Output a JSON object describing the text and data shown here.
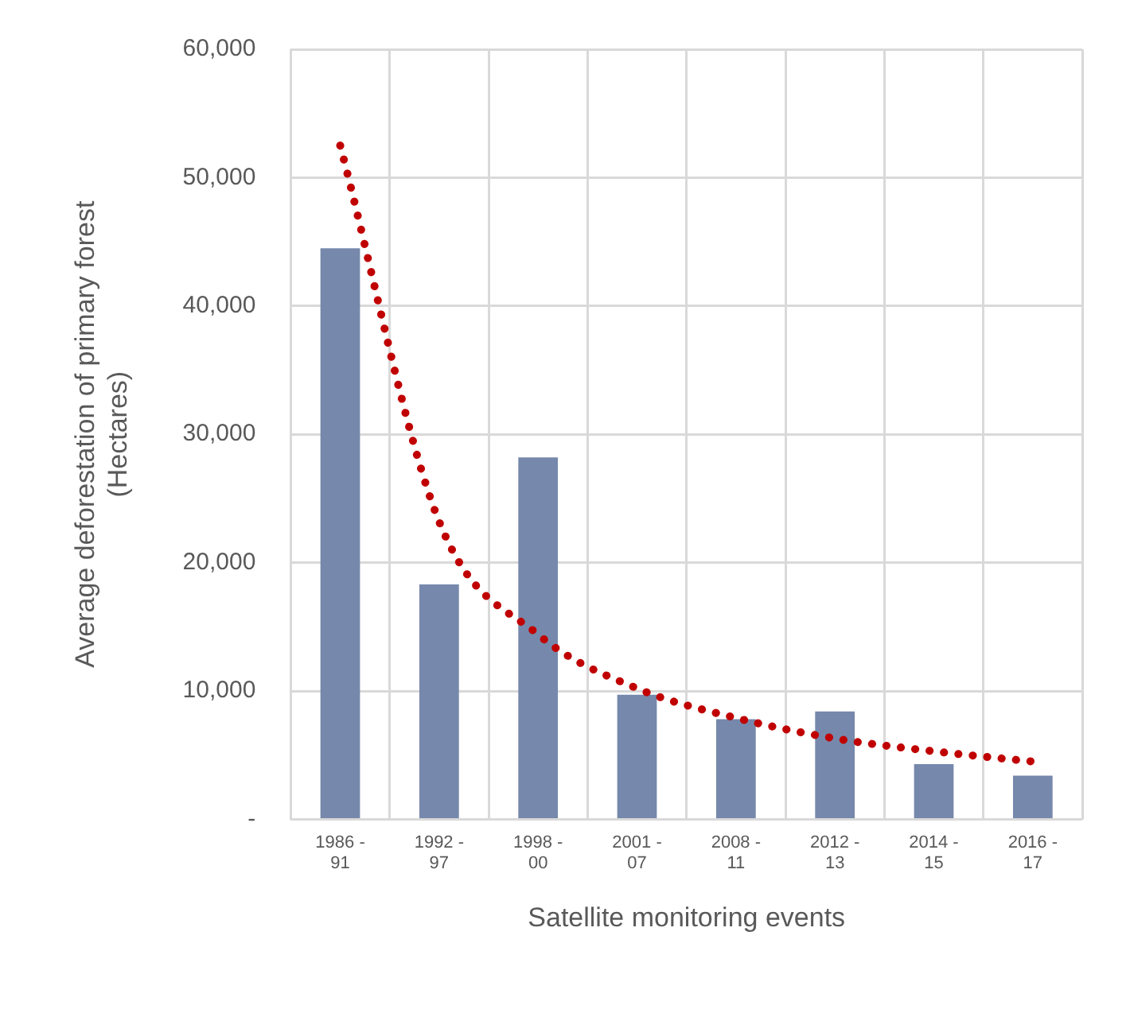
{
  "chart_data": {
    "type": "bar",
    "xlabel": "Satellite monitoring events",
    "ylabel": "Average deforestation of primary forest (Hectares)",
    "categories": [
      "1986 - 91",
      "1992 - 97",
      "1998 - 00",
      "2001 - 07",
      "2008 - 11",
      "2012 - 13",
      "2014 - 15",
      "2016 - 17"
    ],
    "series": [
      {
        "color": "#7688ab",
        "values": [
          44500,
          18300,
          28200,
          9700,
          7800,
          8400,
          4300,
          3400
        ]
      },
      {
        "type": "line",
        "color": "#c00000",
        "line_style": "dotted",
        "marker": "none",
        "values": [
          52500,
          23200,
          14400,
          10200,
          7900,
          6300,
          5300,
          4500
        ]
      }
    ],
    "ylim": [
      0,
      60000
    ],
    "yticks": [
      {
        "value": 0,
        "label": "-"
      },
      {
        "value": 10000,
        "label": "10,000"
      },
      {
        "value": 20000,
        "label": "20,000"
      },
      {
        "value": 30000,
        "label": "30,000"
      },
      {
        "value": 40000,
        "label": "40,000"
      },
      {
        "value": 50000,
        "label": "50,000"
      },
      {
        "value": 60000,
        "label": "60,000"
      }
    ],
    "grid": true,
    "legend": false
  }
}
